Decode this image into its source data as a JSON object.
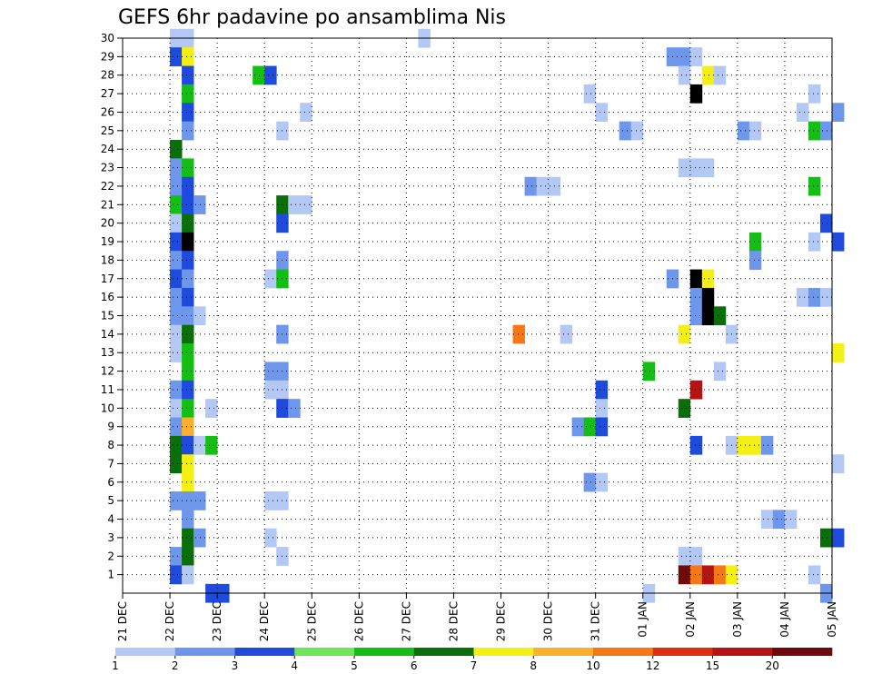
{
  "chart_data": {
    "type": "heatmap",
    "title": "GEFS 6hr padavine po ansamblima Nis",
    "x_ticks": [
      "21 DEC",
      "22 DEC",
      "23 DEC",
      "24 DEC",
      "25 DEC",
      "26 DEC",
      "27 DEC",
      "28 DEC",
      "29 DEC",
      "30 DEC",
      "31 DEC",
      "01 JAN",
      "02 JAN",
      "03 JAN",
      "04 JAN",
      "05 JAN"
    ],
    "y_ticks": [
      1,
      2,
      3,
      4,
      5,
      6,
      7,
      8,
      9,
      10,
      11,
      12,
      13,
      14,
      15,
      16,
      17,
      18,
      19,
      20,
      21,
      22,
      23,
      24,
      25,
      26,
      27,
      28,
      29,
      30
    ],
    "x_range_days": [
      0,
      15
    ],
    "y_range": [
      0,
      30
    ],
    "grid": true,
    "legend": {
      "position": "bottom",
      "colors": [
        "#b4c8f5",
        "#6e96eb",
        "#1e4bdc",
        "#6ee65a",
        "#14be14",
        "#0a6e0a",
        "#f5f014",
        "#faaf2d",
        "#f57814",
        "#e12d0f",
        "#b41414",
        "#6e0a0a"
      ],
      "labels": [
        "1",
        "2",
        "3",
        "4",
        "5",
        "6",
        "7",
        "8",
        "10",
        "12",
        "15",
        "20"
      ]
    },
    "cells": [
      [
        1.0,
        30,
        1
      ],
      [
        1.25,
        30,
        1
      ],
      [
        6.25,
        30,
        1
      ],
      [
        1.0,
        29,
        3
      ],
      [
        1.25,
        29,
        7
      ],
      [
        11.5,
        29,
        2
      ],
      [
        11.75,
        29,
        2
      ],
      [
        12.0,
        29,
        1
      ],
      [
        1.25,
        28,
        3
      ],
      [
        2.75,
        28,
        5
      ],
      [
        3.0,
        28,
        3
      ],
      [
        11.75,
        28,
        1
      ],
      [
        12.25,
        28,
        7
      ],
      [
        12.5,
        28,
        1
      ],
      [
        1.25,
        27,
        5
      ],
      [
        9.75,
        27,
        1
      ],
      [
        12.0,
        27,
        13
      ],
      [
        14.5,
        27,
        1
      ],
      [
        1.25,
        26,
        3
      ],
      [
        3.75,
        26,
        1
      ],
      [
        10.0,
        26,
        1
      ],
      [
        14.25,
        26,
        1
      ],
      [
        15.0,
        26,
        2
      ],
      [
        1.25,
        25,
        2
      ],
      [
        3.25,
        25,
        1
      ],
      [
        10.5,
        25,
        2
      ],
      [
        10.75,
        25,
        1
      ],
      [
        13.0,
        25,
        2
      ],
      [
        13.25,
        25,
        1
      ],
      [
        14.5,
        25,
        5
      ],
      [
        14.75,
        25,
        2
      ],
      [
        1.0,
        24,
        6
      ],
      [
        1.0,
        23,
        2
      ],
      [
        1.25,
        23,
        5
      ],
      [
        11.75,
        23,
        1
      ],
      [
        12.0,
        23,
        1
      ],
      [
        12.25,
        23,
        1
      ],
      [
        1.0,
        22,
        2
      ],
      [
        1.25,
        22,
        3
      ],
      [
        8.5,
        22,
        2
      ],
      [
        8.75,
        22,
        1
      ],
      [
        9.0,
        22,
        1
      ],
      [
        14.5,
        22,
        5
      ],
      [
        1.0,
        21,
        5
      ],
      [
        1.25,
        21,
        3
      ],
      [
        1.5,
        21,
        2
      ],
      [
        3.25,
        21,
        6
      ],
      [
        3.5,
        21,
        1
      ],
      [
        3.75,
        21,
        1
      ],
      [
        1.0,
        20,
        1
      ],
      [
        1.25,
        20,
        6
      ],
      [
        3.25,
        20,
        3
      ],
      [
        14.75,
        20,
        3
      ],
      [
        1.0,
        19,
        3
      ],
      [
        1.25,
        19,
        13
      ],
      [
        13.25,
        19,
        5
      ],
      [
        14.5,
        19,
        1
      ],
      [
        15.0,
        19,
        3
      ],
      [
        1.0,
        18,
        2
      ],
      [
        1.25,
        18,
        3
      ],
      [
        3.25,
        18,
        2
      ],
      [
        13.25,
        18,
        2
      ],
      [
        1.0,
        17,
        3
      ],
      [
        1.25,
        17,
        2
      ],
      [
        3.0,
        17,
        1
      ],
      [
        3.25,
        17,
        5
      ],
      [
        11.5,
        17,
        2
      ],
      [
        12.0,
        17,
        13
      ],
      [
        12.25,
        17,
        7
      ],
      [
        1.0,
        16,
        2
      ],
      [
        1.25,
        16,
        3
      ],
      [
        12.0,
        16,
        2
      ],
      [
        12.25,
        16,
        14
      ],
      [
        14.25,
        16,
        1
      ],
      [
        14.5,
        16,
        2
      ],
      [
        14.75,
        16,
        1
      ],
      [
        1.0,
        15,
        2
      ],
      [
        1.25,
        15,
        2
      ],
      [
        1.5,
        15,
        1
      ],
      [
        12.0,
        15,
        2
      ],
      [
        12.25,
        15,
        14
      ],
      [
        12.5,
        15,
        6
      ],
      [
        1.0,
        14,
        1
      ],
      [
        1.25,
        14,
        6
      ],
      [
        3.25,
        14,
        2
      ],
      [
        8.25,
        14,
        9
      ],
      [
        9.25,
        14,
        1
      ],
      [
        11.75,
        14,
        7
      ],
      [
        12.75,
        14,
        1
      ],
      [
        1.0,
        13,
        1
      ],
      [
        1.25,
        13,
        5
      ],
      [
        15.0,
        13,
        7
      ],
      [
        1.25,
        12,
        5
      ],
      [
        3.0,
        12,
        2
      ],
      [
        3.25,
        12,
        2
      ],
      [
        11.0,
        12,
        5
      ],
      [
        12.5,
        12,
        1
      ],
      [
        1.0,
        11,
        2
      ],
      [
        1.25,
        11,
        3
      ],
      [
        3.0,
        11,
        1
      ],
      [
        3.25,
        11,
        1
      ],
      [
        10.0,
        11,
        3
      ],
      [
        12.0,
        11,
        11
      ],
      [
        1.0,
        10,
        1
      ],
      [
        1.25,
        10,
        5
      ],
      [
        1.75,
        10,
        1
      ],
      [
        3.25,
        10,
        3
      ],
      [
        3.5,
        10,
        2
      ],
      [
        10.0,
        10,
        1
      ],
      [
        11.75,
        10,
        6
      ],
      [
        1.0,
        9,
        2
      ],
      [
        1.25,
        9,
        8
      ],
      [
        9.5,
        9,
        2
      ],
      [
        9.75,
        9,
        5
      ],
      [
        10.0,
        9,
        3
      ],
      [
        1.0,
        8,
        6
      ],
      [
        1.25,
        8,
        3
      ],
      [
        1.5,
        8,
        1
      ],
      [
        1.75,
        8,
        5
      ],
      [
        12.0,
        8,
        3
      ],
      [
        12.75,
        8,
        1
      ],
      [
        13.0,
        8,
        7
      ],
      [
        13.25,
        8,
        7
      ],
      [
        13.5,
        8,
        2
      ],
      [
        1.0,
        7,
        6
      ],
      [
        1.25,
        7,
        7
      ],
      [
        15.0,
        7,
        1
      ],
      [
        1.25,
        6,
        7
      ],
      [
        9.75,
        6,
        2
      ],
      [
        10.0,
        6,
        1
      ],
      [
        1.0,
        5,
        2
      ],
      [
        1.25,
        5,
        2
      ],
      [
        1.5,
        5,
        2
      ],
      [
        3.0,
        5,
        1
      ],
      [
        3.25,
        5,
        1
      ],
      [
        1.25,
        4,
        2
      ],
      [
        13.5,
        4,
        1
      ],
      [
        13.75,
        4,
        2
      ],
      [
        14.0,
        4,
        1
      ],
      [
        1.25,
        3,
        6
      ],
      [
        1.5,
        3,
        2
      ],
      [
        3.0,
        3,
        1
      ],
      [
        14.75,
        3,
        6
      ],
      [
        15.0,
        3,
        3
      ],
      [
        1.0,
        2,
        2
      ],
      [
        1.25,
        2,
        6
      ],
      [
        3.25,
        2,
        1
      ],
      [
        11.75,
        2,
        1
      ],
      [
        12.0,
        2,
        1
      ],
      [
        1.0,
        1,
        3
      ],
      [
        1.25,
        1,
        1
      ],
      [
        11.75,
        1,
        12
      ],
      [
        12.0,
        1,
        9
      ],
      [
        12.25,
        1,
        11
      ],
      [
        12.5,
        1,
        9
      ],
      [
        12.75,
        1,
        7
      ],
      [
        14.5,
        1,
        1
      ],
      [
        1.75,
        0,
        3
      ],
      [
        2.0,
        0,
        3
      ],
      [
        11.0,
        0,
        1
      ],
      [
        14.75,
        0,
        2
      ]
    ]
  }
}
